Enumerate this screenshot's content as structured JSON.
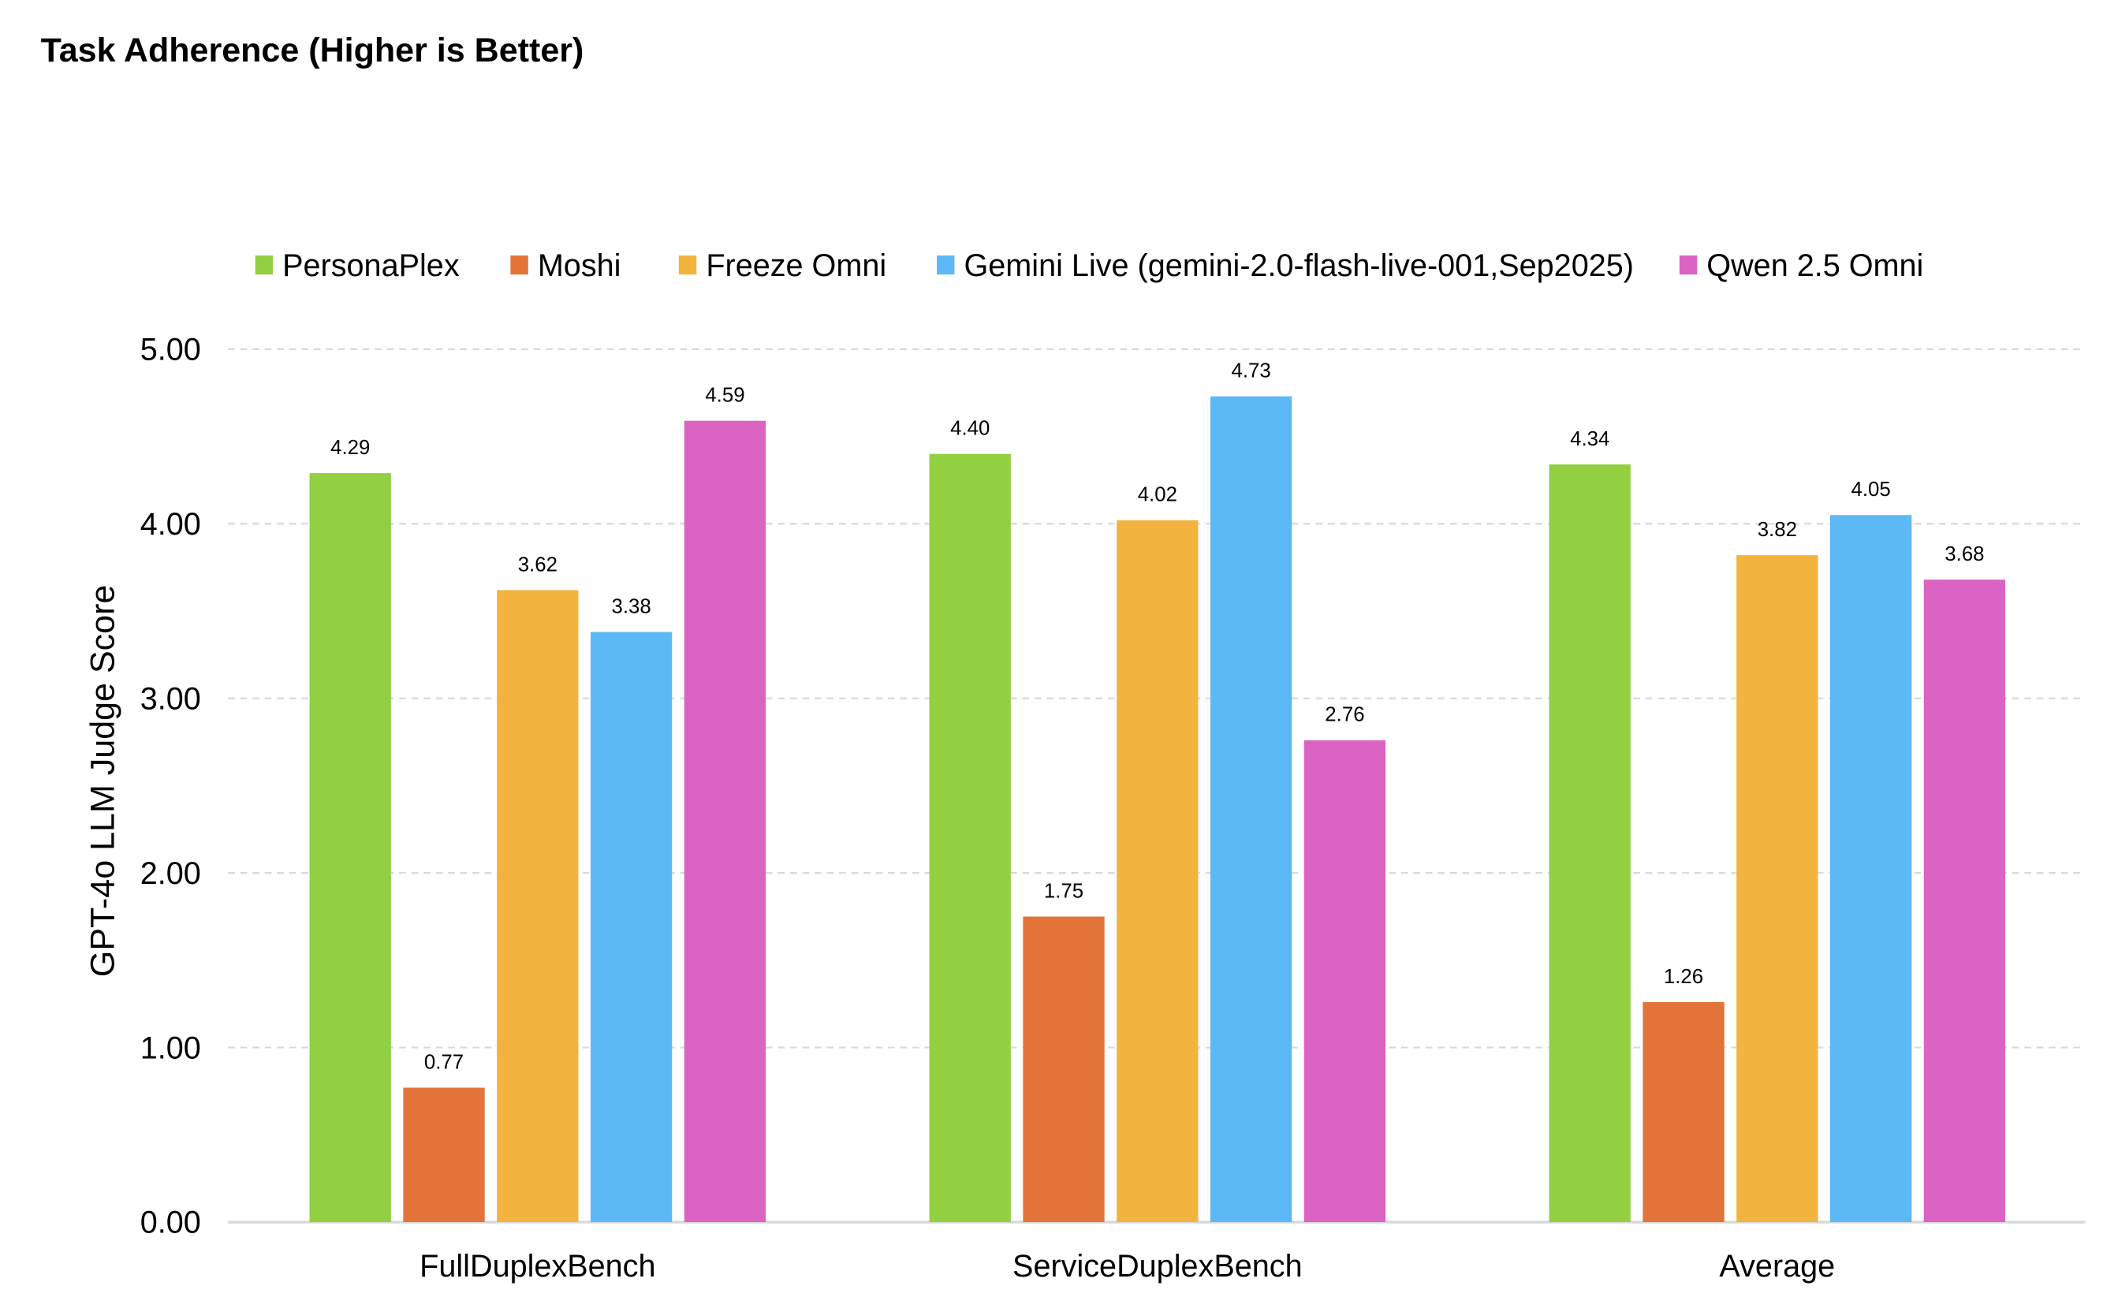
{
  "chart_data": {
    "type": "bar",
    "title": "Task Adherence (Higher is Better)",
    "xlabel": "",
    "ylabel": "GPT-4o LLM Judge Score",
    "ylim": [
      0,
      5
    ],
    "yticks": [
      "0.00",
      "1.00",
      "2.00",
      "3.00",
      "4.00",
      "5.00"
    ],
    "grid": true,
    "legend_position": "top",
    "categories": [
      "FullDuplexBench",
      "ServiceDuplexBench",
      "Average"
    ],
    "series": [
      {
        "name": "PersonaPlex",
        "color": "#92cf41",
        "values": [
          4.29,
          4.4,
          4.34
        ]
      },
      {
        "name": "Moshi",
        "color": "#e27339",
        "values": [
          0.77,
          1.75,
          1.26
        ]
      },
      {
        "name": "Freeze Omni",
        "color": "#f3b33f",
        "values": [
          3.62,
          4.02,
          3.82
        ]
      },
      {
        "name": "Gemini Live (gemini-2.0-flash-live-001,Sep2025)",
        "color": "#5cb9f6",
        "values": [
          3.38,
          4.73,
          4.05
        ]
      },
      {
        "name": "Qwen 2.5 Omni",
        "color": "#db63c1",
        "values": [
          4.59,
          2.76,
          3.68
        ]
      }
    ]
  }
}
